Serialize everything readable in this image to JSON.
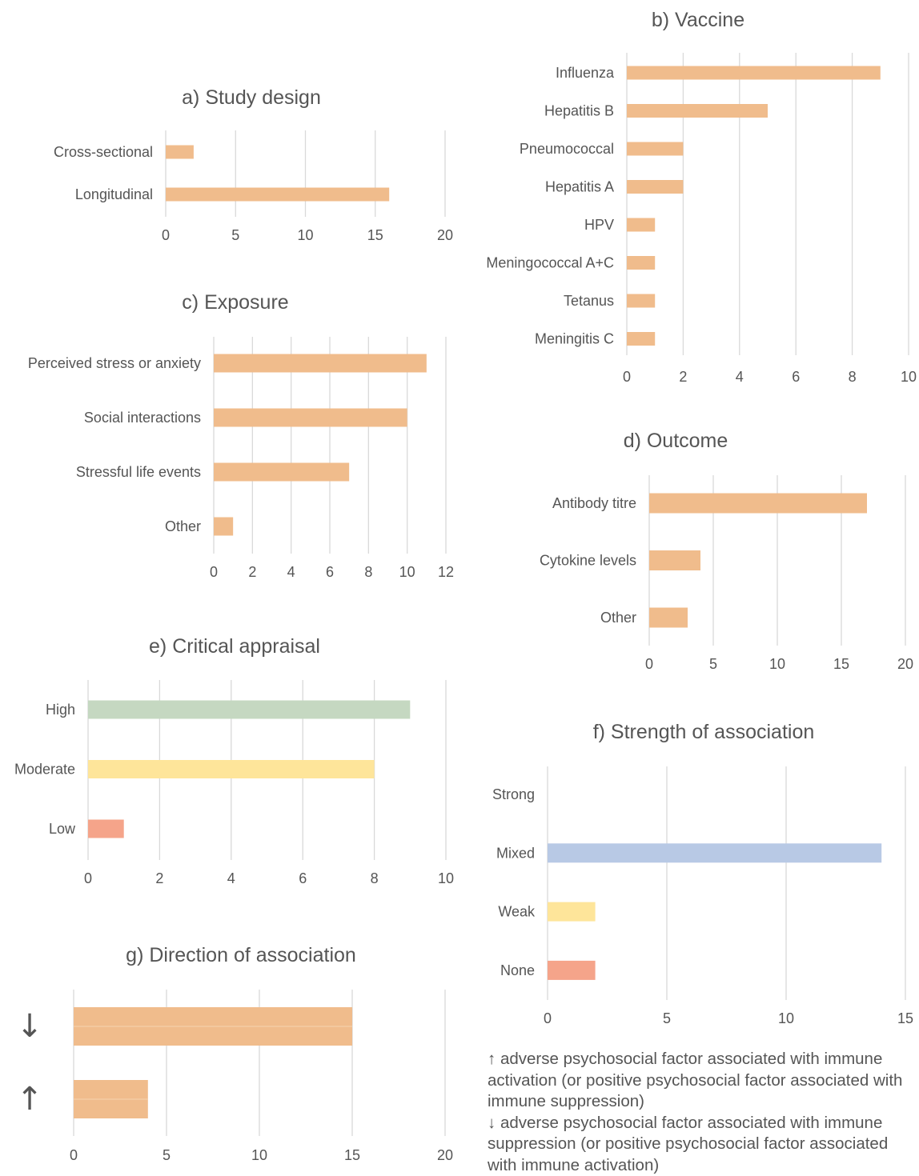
{
  "colors": {
    "bar": "#f0bc8c",
    "high": "#c5d8c1",
    "moderate": "#fee59a",
    "low": "#f5a48a",
    "mixed": "#b8c9e5",
    "grid": "#d9d9d9",
    "text": "#555555"
  },
  "chart_data": [
    {
      "id": "a",
      "type": "bar",
      "orientation": "horizontal",
      "title": "a) Study design",
      "categories": [
        "Cross-sectional",
        "Longitudinal"
      ],
      "values": [
        2,
        16
      ],
      "xlim": [
        0,
        20
      ],
      "ticks": [
        0,
        5,
        10,
        15,
        20
      ],
      "grid": true
    },
    {
      "id": "b",
      "type": "bar",
      "orientation": "horizontal",
      "title": "b) Vaccine",
      "categories": [
        "Influenza",
        "Hepatitis B",
        "Pneumococcal",
        "Hepatitis A",
        "HPV",
        "Meningococcal A+C",
        "Tetanus",
        "Meningitis C"
      ],
      "values": [
        9,
        5,
        2,
        2,
        1,
        1,
        1,
        1
      ],
      "xlim": [
        0,
        10
      ],
      "ticks": [
        0,
        2,
        4,
        6,
        8,
        10
      ],
      "grid": true
    },
    {
      "id": "c",
      "type": "bar",
      "orientation": "horizontal",
      "title": "c) Exposure",
      "categories": [
        "Perceived stress or anxiety",
        "Social interactions",
        "Stressful life events",
        "Other"
      ],
      "values": [
        11,
        10,
        7,
        1
      ],
      "xlim": [
        0,
        12
      ],
      "ticks": [
        0,
        2,
        4,
        6,
        8,
        10,
        12
      ],
      "grid": true
    },
    {
      "id": "d",
      "type": "bar",
      "orientation": "horizontal",
      "title": "d) Outcome",
      "categories": [
        "Antibody titre",
        "Cytokine levels",
        "Other"
      ],
      "values": [
        17,
        4,
        3
      ],
      "xlim": [
        0,
        20
      ],
      "ticks": [
        0,
        5,
        10,
        15,
        20
      ],
      "grid": true
    },
    {
      "id": "e",
      "type": "bar",
      "orientation": "horizontal",
      "title": "e) Critical appraisal",
      "categories": [
        "High",
        "Moderate",
        "Low"
      ],
      "values": [
        9,
        8,
        1
      ],
      "bar_colors": [
        "high",
        "moderate",
        "low"
      ],
      "xlim": [
        0,
        10
      ],
      "ticks": [
        0,
        2,
        4,
        6,
        8,
        10
      ],
      "grid": true
    },
    {
      "id": "f",
      "type": "bar",
      "orientation": "horizontal",
      "title": "f) Strength of association",
      "categories": [
        "Strong",
        "Mixed",
        "Weak",
        "None"
      ],
      "values": [
        0,
        14,
        2,
        2
      ],
      "bar_colors": [
        "bar",
        "mixed",
        "moderate",
        "low"
      ],
      "xlim": [
        0,
        15
      ],
      "ticks": [
        0,
        5,
        10,
        15
      ],
      "grid": true
    },
    {
      "id": "g",
      "type": "bar",
      "orientation": "horizontal",
      "title": "g) Direction of association",
      "categories": [
        "↓",
        "↑"
      ],
      "values": [
        15,
        4
      ],
      "xlim": [
        0,
        20
      ],
      "ticks": [
        0,
        5,
        10,
        15,
        20
      ],
      "grid": true
    }
  ],
  "footnote": {
    "up": "↑ adverse psychosocial factor associated with immune activation (or positive psychosocial factor associated with immune suppression)",
    "down": "↓ adverse psychosocial factor associated with immune suppression (or positive psychosocial factor associated with immune activation)"
  }
}
